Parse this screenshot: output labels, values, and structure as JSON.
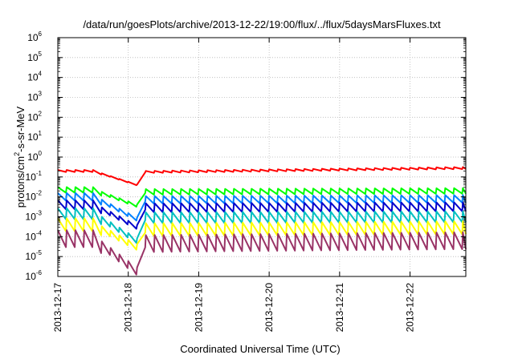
{
  "chart_data": {
    "type": "line",
    "title": "/data/run/goesPlots/archive/2013-12-22/19:00/flux/../flux/5daysMarsFluxes.txt",
    "xlabel": "Coordinated Universal Time (UTC)",
    "ylabel": {
      "base": "protons/cm",
      "sup": "2",
      "rest": "-s-sr-MeV"
    },
    "y_scale": "log",
    "ylim_exp": [
      -6,
      6
    ],
    "y_ticks": [
      {
        "base": "10",
        "exp": "-6"
      },
      {
        "base": "10",
        "exp": "-5"
      },
      {
        "base": "10",
        "exp": "-4"
      },
      {
        "base": "10",
        "exp": "-3"
      },
      {
        "base": "10",
        "exp": "-2"
      },
      {
        "base": "10",
        "exp": "-1"
      },
      {
        "base": "10",
        "exp": "0"
      },
      {
        "base": "10",
        "exp": "1"
      },
      {
        "base": "10",
        "exp": "2"
      },
      {
        "base": "10",
        "exp": "3"
      },
      {
        "base": "10",
        "exp": "4"
      },
      {
        "base": "10",
        "exp": "5"
      },
      {
        "base": "10",
        "exp": "6"
      }
    ],
    "x_ticks": [
      "2013-12-17",
      "2013-12-18",
      "2013-12-19",
      "2013-12-20",
      "2013-12-21",
      "2013-12-22"
    ],
    "xlim": [
      "2013-12-17",
      "2013-12-22 19:00"
    ],
    "grid": true,
    "sawtooth_period_hours": 3,
    "series": [
      {
        "color": "#ff0000",
        "phases": {
          "pre": -0.7,
          "dip": -1.45,
          "post": -0.75,
          "end": -0.55
        },
        "amp": 0.1
      },
      {
        "color": "#00ff00",
        "phases": {
          "pre": -1.65,
          "dip": -2.5,
          "post": -1.75,
          "end": -1.7
        },
        "amp": 0.28
      },
      {
        "color": "#0080ff",
        "phases": {
          "pre": -2.0,
          "dip": -3.2,
          "post": -2.15,
          "end": -2.1
        },
        "amp": 0.38
      },
      {
        "color": "#0000cc",
        "phases": {
          "pre": -2.4,
          "dip": -3.6,
          "post": -2.55,
          "end": -2.5
        },
        "amp": 0.45
      },
      {
        "color": "#00c0c0",
        "phases": {
          "pre": -2.85,
          "dip": -4.3,
          "post": -3.05,
          "end": -3.0
        },
        "amp": 0.55
      },
      {
        "color": "#ffff00",
        "phases": {
          "pre": -3.4,
          "dip": -4.6,
          "post": -3.65,
          "end": -3.55
        },
        "amp": 0.65
      },
      {
        "color": "#993366",
        "phases": {
          "pre": -4.1,
          "dip": -5.85,
          "post": -4.35,
          "end": -4.2
        },
        "amp": 0.85
      }
    ]
  }
}
